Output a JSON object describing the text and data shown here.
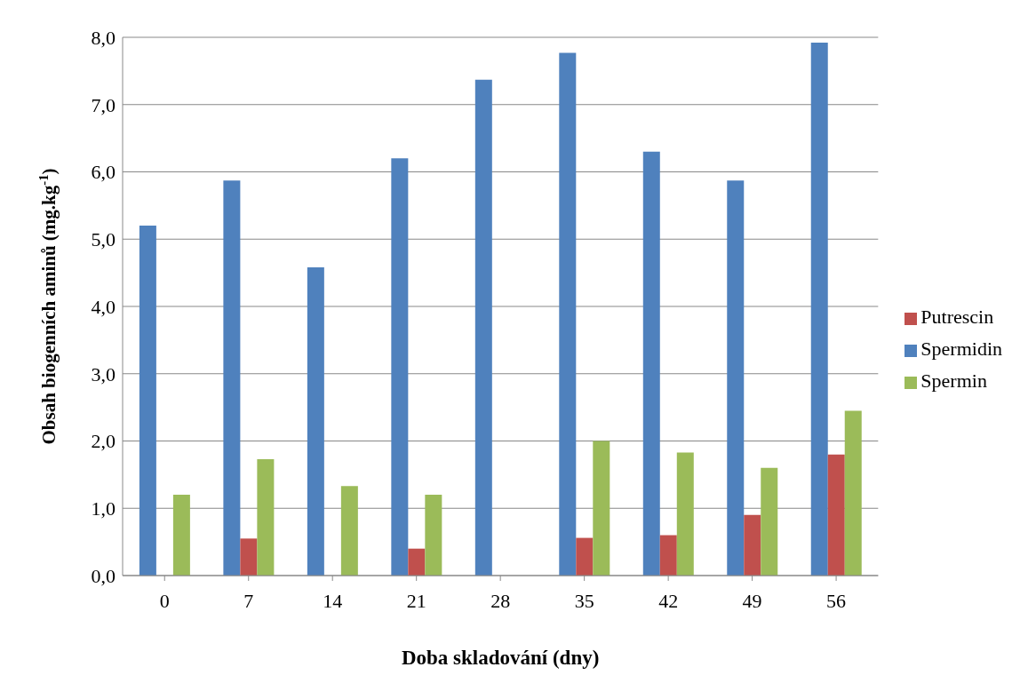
{
  "chart_data": {
    "type": "bar",
    "xlabel": "Doba skladování (dny)",
    "ylabel": "Obsah biogenních aminů (mg.kg$^{-1}$)",
    "categories": [
      "0",
      "7",
      "14",
      "21",
      "28",
      "35",
      "42",
      "49",
      "56"
    ],
    "series": [
      {
        "name": "Spermidin",
        "color": "#4f81bd",
        "values": [
          5.2,
          5.87,
          4.58,
          6.2,
          7.37,
          7.77,
          6.3,
          5.87,
          7.92
        ]
      },
      {
        "name": "Putrescin",
        "color": "#c0504d",
        "values": [
          null,
          0.55,
          null,
          0.4,
          null,
          0.56,
          0.6,
          0.9,
          1.8
        ]
      },
      {
        "name": "Spermin",
        "color": "#9bbb59",
        "values": [
          1.2,
          1.73,
          1.33,
          1.2,
          null,
          2.0,
          1.83,
          1.6,
          2.45
        ]
      }
    ],
    "ylim": [
      0,
      8
    ],
    "yticks": [
      {
        "value": 0,
        "label": "0,0"
      },
      {
        "value": 1,
        "label": "1,0"
      },
      {
        "value": 2,
        "label": "2,0"
      },
      {
        "value": 3,
        "label": "3,0"
      },
      {
        "value": 4,
        "label": "4,0"
      },
      {
        "value": 5,
        "label": "5,0"
      },
      {
        "value": 6,
        "label": "6,0"
      },
      {
        "value": 7,
        "label": "7,0"
      },
      {
        "value": 8,
        "label": "8,0"
      }
    ],
    "grid": "y",
    "legend": "right"
  }
}
